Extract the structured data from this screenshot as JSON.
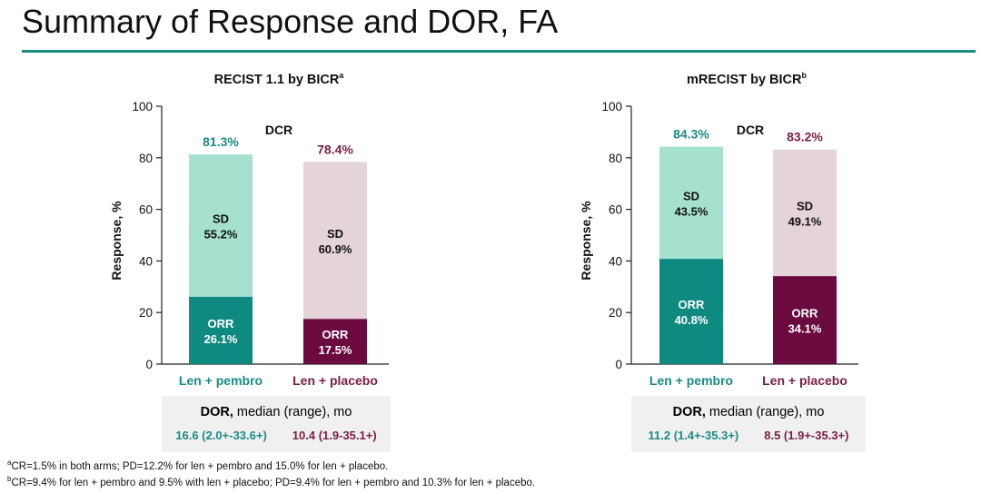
{
  "title": "Summary of Response and DOR, FA",
  "colors": {
    "teal_dark": "#0f8a80",
    "teal_light": "#a6e1cf",
    "plum_dark": "#6a0a3e",
    "plum_light": "#e5d3da",
    "teal_text": "#1a8b84",
    "plum_text": "#7a1d45",
    "rule": "#1b8a83"
  },
  "chart_data": [
    {
      "type": "bar",
      "stacked": true,
      "title": "RECIST 1.1 by BICR",
      "title_sup": "a",
      "ylabel": "Response, %",
      "ylim": [
        0,
        100
      ],
      "yticks": [
        "0",
        "20",
        "40",
        "60",
        "80",
        "100"
      ],
      "categories": [
        "Len + pembro",
        "Len + placebo"
      ],
      "series": [
        {
          "name": "ORR",
          "values": [
            26.1,
            17.5
          ]
        },
        {
          "name": "SD",
          "values": [
            55.2,
            60.9
          ]
        }
      ],
      "segment_labels": {
        "ORR": [
          "ORR",
          "ORR"
        ],
        "ORR_values": [
          "26.1%",
          "17.5%"
        ],
        "SD": [
          "SD",
          "SD"
        ],
        "SD_values": [
          "55.2%",
          "60.9%"
        ]
      },
      "totals": [
        81.3,
        78.4
      ],
      "total_labels": [
        "81.3%",
        "78.4%"
      ],
      "annotation": "DCR",
      "dor": {
        "label_bold": "DOR,",
        "label_rest": " median (range), mo",
        "values": [
          "16.6 (2.0+-33.6+)",
          "10.4 (1.9-35.1+)"
        ]
      }
    },
    {
      "type": "bar",
      "stacked": true,
      "title": "mRECIST by BICR",
      "title_sup": "b",
      "ylabel": "Response, %",
      "ylim": [
        0,
        100
      ],
      "yticks": [
        "0",
        "20",
        "40",
        "60",
        "80",
        "100"
      ],
      "categories": [
        "Len + pembro",
        "Len + placebo"
      ],
      "series": [
        {
          "name": "ORR",
          "values": [
            40.8,
            34.1
          ]
        },
        {
          "name": "SD",
          "values": [
            43.5,
            49.1
          ]
        }
      ],
      "segment_labels": {
        "ORR": [
          "ORR",
          "ORR"
        ],
        "ORR_values": [
          "40.8%",
          "34.1%"
        ],
        "SD": [
          "SD",
          "SD"
        ],
        "SD_values": [
          "43.5%",
          "49.1%"
        ]
      },
      "totals": [
        84.3,
        83.2
      ],
      "total_labels": [
        "84.3%",
        "83.2%"
      ],
      "annotation": "DCR",
      "dor": {
        "label_bold": "DOR,",
        "label_rest": " median (range), mo",
        "values": [
          "11.2 (1.4+-35.3+)",
          "8.5 (1.9+-35.3+)"
        ]
      }
    }
  ],
  "footnotes": [
    {
      "sup": "a",
      "text": "CR=1.5% in both arms; PD=12.2% for len + pembro and 15.0% for len + placebo."
    },
    {
      "sup": "b",
      "text": "CR=9.4% for len + pembro and 9.5% with len + placebo; PD=9.4% for len + pembro and 10.3% for len + placebo."
    }
  ]
}
